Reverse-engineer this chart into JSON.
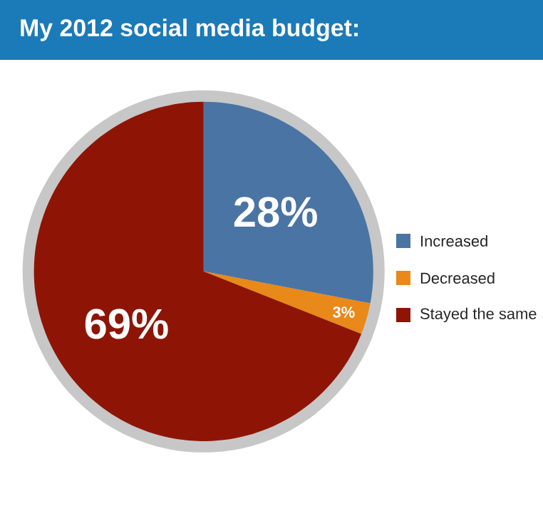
{
  "chart_data": {
    "type": "pie",
    "title": "My 2012 social media budget:",
    "categories": [
      "Increased",
      "Decreased",
      "Stayed the same"
    ],
    "values": [
      28,
      3,
      69
    ],
    "colors": [
      "#4a74a4",
      "#e8891a",
      "#8e1506"
    ],
    "value_labels": [
      "28%",
      "3%",
      "69%"
    ],
    "legend": "right"
  }
}
